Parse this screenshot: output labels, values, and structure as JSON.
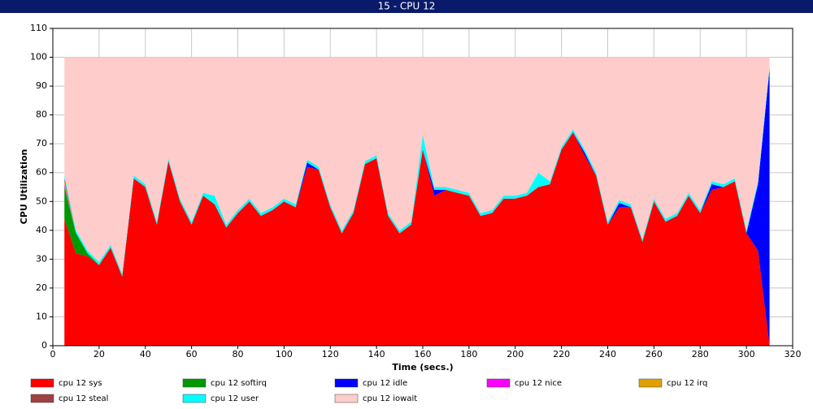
{
  "chart_data": {
    "type": "stacked_area",
    "title": "15 - CPU 12",
    "x_label": "Time (secs.)",
    "y_label": "CPU Utilization",
    "x": [
      5,
      10,
      15,
      20,
      25,
      30,
      35,
      40,
      45,
      50,
      55,
      60,
      65,
      70,
      75,
      80,
      85,
      90,
      95,
      100,
      105,
      110,
      115,
      120,
      125,
      130,
      135,
      140,
      145,
      150,
      155,
      160,
      165,
      170,
      175,
      180,
      185,
      190,
      195,
      200,
      205,
      210,
      215,
      220,
      225,
      230,
      235,
      240,
      245,
      250,
      255,
      260,
      265,
      270,
      275,
      280,
      285,
      290,
      295,
      300,
      305,
      310
    ],
    "series": [
      {
        "name": "cpu 12 sys",
        "color": "#ff0000",
        "values": [
          44,
          32,
          31,
          28,
          34,
          24,
          58,
          55,
          42,
          64,
          50,
          42,
          52,
          49,
          41,
          46,
          50,
          45,
          47,
          50,
          48,
          62,
          61,
          48,
          39,
          46,
          63,
          65,
          45,
          39,
          42,
          68,
          52,
          54,
          53,
          52,
          45,
          46,
          51,
          51,
          52,
          55,
          56,
          68,
          74,
          66,
          59,
          42,
          48,
          48,
          36,
          50,
          43,
          45,
          52,
          46,
          54,
          55,
          57,
          39,
          33,
          0
        ]
      },
      {
        "name": "cpu 12 softirq",
        "color": "#009900",
        "values": [
          11,
          7,
          1,
          0,
          0,
          0,
          0,
          0,
          0,
          0,
          0,
          0,
          0,
          0,
          0,
          0,
          0,
          0,
          0,
          0,
          0,
          0,
          0,
          0,
          0,
          0,
          0,
          0,
          0,
          0,
          0,
          0,
          0,
          0,
          0,
          0,
          0,
          0,
          0,
          0,
          0,
          0,
          0,
          0,
          0,
          0,
          0,
          0,
          0,
          0,
          0,
          0,
          0,
          0,
          0,
          0,
          0,
          0,
          0,
          0,
          0,
          0
        ]
      },
      {
        "name": "cpu 12 idle",
        "color": "#0000ff",
        "values": [
          0,
          0,
          0,
          0,
          0,
          0,
          0,
          0,
          0,
          0,
          0,
          0,
          0,
          0,
          0,
          0,
          0,
          0,
          0,
          0,
          0,
          1.5,
          0,
          0,
          0,
          0,
          0,
          0,
          0,
          0,
          0,
          0,
          2,
          0,
          0,
          0,
          0,
          0,
          0,
          0,
          0,
          0,
          0,
          0,
          0,
          1,
          0,
          0,
          1.5,
          0,
          0,
          0,
          0,
          0,
          0,
          0,
          2,
          0,
          0,
          0,
          23,
          96
        ]
      },
      {
        "name": "cpu 12 nice",
        "color": "#ff00ff",
        "values": [
          1,
          0,
          0,
          0,
          0,
          0,
          0,
          0,
          0,
          0,
          0,
          0,
          0,
          0,
          0,
          0,
          0,
          0,
          0,
          0,
          0,
          0,
          0,
          0,
          0,
          0,
          0,
          0,
          0,
          0,
          0,
          0,
          0,
          0,
          0,
          0,
          0,
          0,
          0,
          0,
          0,
          0,
          0,
          0,
          0,
          0,
          0,
          0,
          0,
          0,
          0,
          0,
          0,
          0,
          0,
          0,
          0,
          0,
          0,
          0,
          0,
          0
        ]
      },
      {
        "name": "cpu 12 irq",
        "color": "#e0a000",
        "values": [
          1,
          0,
          0,
          0,
          0,
          0,
          0,
          0,
          0,
          0,
          0,
          0,
          0,
          0,
          0,
          0,
          0,
          0,
          0,
          0,
          0,
          0,
          0,
          0,
          0,
          0,
          0,
          0,
          0,
          0,
          0,
          0,
          0,
          0,
          0,
          0,
          0,
          0,
          0,
          0,
          0,
          0,
          0,
          0,
          0,
          0,
          0,
          0,
          0,
          0,
          0,
          0,
          0,
          0,
          0,
          0,
          0,
          0,
          0,
          0,
          0,
          0
        ]
      },
      {
        "name": "cpu 12 steal",
        "color": "#a04040",
        "values": [
          1,
          0,
          0,
          0,
          0,
          0,
          0,
          0,
          0,
          0,
          0,
          0,
          0,
          0,
          0,
          0,
          0,
          0,
          0,
          0,
          0,
          0,
          0,
          0,
          0,
          0,
          0,
          0,
          0,
          0,
          0,
          0,
          0,
          0,
          0,
          0,
          0,
          0,
          0,
          0,
          0,
          0,
          0,
          0,
          0,
          0,
          0,
          0,
          0,
          0,
          0,
          0,
          0,
          0,
          0,
          0,
          0,
          0,
          0,
          0,
          0,
          0
        ]
      },
      {
        "name": "cpu 12 user",
        "color": "#00ffff",
        "values": [
          1,
          1,
          1,
          1,
          1,
          1,
          1,
          1,
          1,
          1,
          1,
          1,
          1,
          3,
          1,
          1,
          1,
          1,
          1,
          1,
          1,
          1,
          1,
          1,
          1,
          1,
          1,
          1,
          1,
          1,
          1,
          5,
          1,
          1,
          1,
          1,
          1,
          1,
          1,
          1,
          1,
          5,
          1,
          1,
          1,
          1,
          1,
          1,
          1,
          1,
          1,
          1,
          1,
          1,
          1,
          1,
          1,
          1,
          1,
          1,
          1,
          1
        ]
      },
      {
        "name": "cpu 12 iowait",
        "color": "#ffcccc",
        "values": [
          41,
          60,
          67,
          71,
          65,
          75,
          41,
          44,
          57,
          35,
          49,
          57,
          47,
          48,
          58,
          53,
          49,
          54,
          52,
          49,
          51,
          35.5,
          38,
          51,
          60,
          53,
          36,
          34,
          54,
          60,
          57,
          27,
          45,
          45,
          46,
          47,
          54,
          53,
          48,
          48,
          47,
          40,
          43,
          31,
          25,
          32,
          40,
          57,
          49.5,
          51,
          63,
          49,
          56,
          54,
          47,
          53,
          43,
          44,
          42,
          60,
          43,
          3
        ]
      }
    ],
    "xlim": [
      0,
      320
    ],
    "xticks": [
      0,
      20,
      40,
      60,
      80,
      100,
      120,
      140,
      160,
      180,
      200,
      220,
      240,
      260,
      280,
      300,
      320
    ],
    "ylim": [
      0,
      110
    ],
    "yticks": [
      0,
      10,
      20,
      30,
      40,
      50,
      60,
      70,
      80,
      90,
      100,
      110
    ],
    "grid": true,
    "legend": "bottom"
  }
}
